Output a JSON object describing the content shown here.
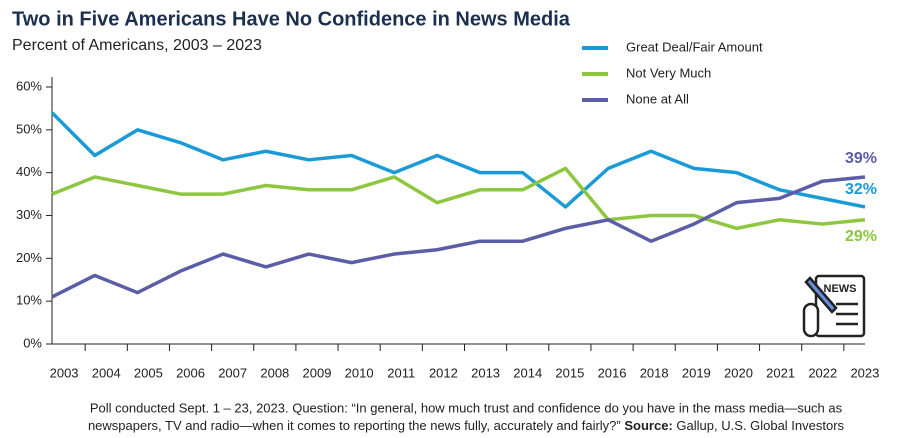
{
  "chart_data": {
    "type": "line",
    "title": "Two in Five Americans Have No Confidence in News Media",
    "subtitle": "Percent of Americans, 2003 – 2023",
    "categories": [
      "2003",
      "2004",
      "2005",
      "2006",
      "2007",
      "2008",
      "2009",
      "2010",
      "2011",
      "2012",
      "2013",
      "2014",
      "2015",
      "2016",
      "2018",
      "2019",
      "2020",
      "2021",
      "2022",
      "2023"
    ],
    "series": [
      {
        "name": "Great Deal/Fair Amount",
        "color": "#1a9bd7",
        "values": [
          54,
          44,
          50,
          47,
          43,
          45,
          43,
          44,
          40,
          44,
          40,
          40,
          32,
          41,
          45,
          41,
          40,
          36,
          34,
          32
        ],
        "value_labels": [
          null,
          null,
          null,
          null,
          null,
          null,
          null,
          null,
          null,
          null,
          null,
          null,
          null,
          null,
          null,
          null,
          null,
          null,
          null,
          "32%"
        ]
      },
      {
        "name": "Not Very Much",
        "color": "#8dc63f",
        "values": [
          35,
          39,
          37,
          35,
          35,
          37,
          36,
          36,
          39,
          33,
          36,
          36,
          41,
          29,
          30,
          30,
          27,
          29,
          28,
          29
        ],
        "value_labels": [
          null,
          null,
          null,
          null,
          null,
          null,
          null,
          null,
          null,
          null,
          null,
          null,
          null,
          null,
          null,
          null,
          null,
          null,
          null,
          "29%"
        ]
      },
      {
        "name": "None at All",
        "color": "#5b5ea6",
        "values": [
          11,
          16,
          12,
          17,
          21,
          18,
          21,
          19,
          21,
          22,
          24,
          24,
          27,
          29,
          24,
          28,
          33,
          34,
          38,
          39
        ],
        "value_labels": [
          null,
          null,
          null,
          null,
          null,
          null,
          null,
          null,
          null,
          null,
          null,
          null,
          null,
          null,
          null,
          null,
          null,
          null,
          null,
          "39%"
        ]
      }
    ],
    "ylim": [
      0,
      60
    ],
    "yticks": [
      {
        "value": 0,
        "label": "0%"
      },
      {
        "value": 10,
        "label": "10%"
      },
      {
        "value": 20,
        "label": "20%"
      },
      {
        "value": 30,
        "label": "30%"
      },
      {
        "value": 40,
        "label": "40%"
      },
      {
        "value": 50,
        "label": "50%"
      },
      {
        "value": 60,
        "label": "60%"
      }
    ],
    "note": "Poll conducted Sept. 1 – 23, 2023. Question: “In general, how much trust and confidence do you have in the mass media—such as",
    "note2": "newspapers, TV and radio—when it comes to reporting the news fully, accurately and fairly?”",
    "source_label": "Source:",
    "source": "Gallup,  U.S. Global Investors"
  }
}
